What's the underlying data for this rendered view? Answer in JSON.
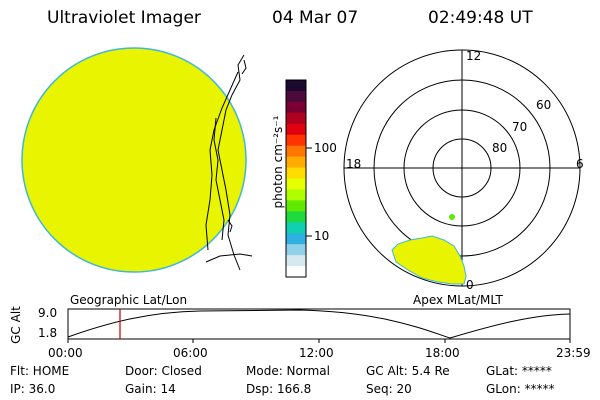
{
  "header": {
    "instrument": "Ultraviolet Imager",
    "date": "04 Mar 07",
    "time": "02:49:48 UT"
  },
  "colorbar": {
    "unit_label": "photon cm⁻²s⁻¹",
    "tick_100": "100",
    "tick_10": "10",
    "colors_top_to_bottom": [
      "#1a0a2e",
      "#4b0a3a",
      "#7a0033",
      "#b0001e",
      "#e00010",
      "#ff3300",
      "#ff7700",
      "#ffaa00",
      "#ffdd00",
      "#e5ff00",
      "#b0ff00",
      "#60e800",
      "#20d840",
      "#10d0b0",
      "#30b0e0",
      "#90d0e8",
      "#d8e8f0",
      "#ffffff"
    ]
  },
  "polar_plot": {
    "mlt_12": "12",
    "mlt_18": "18",
    "mlt_6": "6",
    "mlt_0": "0",
    "lat_60": "60",
    "lat_70": "70",
    "lat_80": "80"
  },
  "labels": {
    "geo": "Geographic Lat/Lon",
    "apex": "Apex MLat/MLT"
  },
  "orbit": {
    "axis_label": "GC Alt",
    "y_max": "9.0",
    "y_min": "1.8",
    "x_ticks": [
      "00:00",
      "06:00",
      "12:00",
      "18:00",
      "23:59"
    ]
  },
  "status": {
    "flt": "Flt: HOME",
    "door": "Door: Closed",
    "mode": "Mode: Normal",
    "gcalt": "GC Alt: 5.4 Re",
    "glat": "GLat: *****",
    "ip": "IP: 36.0",
    "gain": "Gain: 14",
    "dsp": "Dsp:  166.8",
    "seq": "Seq: 20",
    "glon": "GLon: *****"
  },
  "colors": {
    "emission": "#e8f400",
    "edge": "#3fb8d8",
    "cursor": "#cc0000"
  }
}
